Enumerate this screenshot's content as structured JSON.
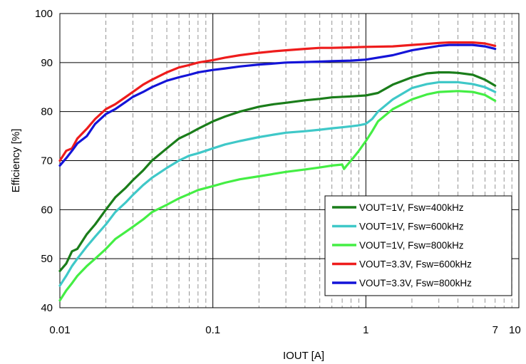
{
  "chart_data": {
    "type": "line",
    "xscale": "log",
    "xlabel": "IOUT [A]",
    "ylabel": "Efficiency [%]",
    "xlim": [
      0.01,
      10
    ],
    "ylim": [
      40,
      100
    ],
    "x_ticks": [
      {
        "value": 0.01,
        "label": "0.01"
      },
      {
        "value": 0.1,
        "label": "0.1"
      },
      {
        "value": 1,
        "label": "1"
      },
      {
        "value": 7,
        "label": "7"
      },
      {
        "value": 10,
        "label": "10"
      }
    ],
    "y_ticks": [
      40,
      50,
      60,
      70,
      80,
      90,
      100
    ],
    "grid": "on",
    "legend_position": "bottom-right",
    "series": [
      {
        "name": "VOUT=1V, Fsw=400kHz",
        "color": "#1a7d1a",
        "x": [
          0.01,
          0.011,
          0.012,
          0.013,
          0.015,
          0.017,
          0.02,
          0.023,
          0.027,
          0.03,
          0.035,
          0.04,
          0.05,
          0.06,
          0.07,
          0.08,
          0.1,
          0.12,
          0.15,
          0.2,
          0.25,
          0.3,
          0.4,
          0.5,
          0.6,
          0.8,
          1.0,
          1.2,
          1.5,
          2,
          2.5,
          3,
          3.5,
          4,
          5,
          6,
          7
        ],
        "y": [
          47.5,
          49,
          51.5,
          52,
          55,
          57,
          60,
          62.5,
          64.5,
          66,
          68,
          70,
          72.5,
          74.5,
          75.5,
          76.5,
          78,
          79,
          80,
          81,
          81.5,
          81.8,
          82.3,
          82.6,
          82.9,
          83.1,
          83.3,
          83.8,
          85.5,
          87,
          87.8,
          88,
          88,
          87.9,
          87.5,
          86.5,
          85.3
        ]
      },
      {
        "name": "VOUT=1V, Fsw=600kHz",
        "color": "#3fc8c8",
        "x": [
          0.01,
          0.011,
          0.012,
          0.013,
          0.015,
          0.017,
          0.02,
          0.023,
          0.027,
          0.03,
          0.035,
          0.04,
          0.05,
          0.06,
          0.07,
          0.08,
          0.1,
          0.12,
          0.15,
          0.2,
          0.25,
          0.3,
          0.4,
          0.5,
          0.6,
          0.7,
          0.8,
          0.9,
          1.0,
          1.1,
          1.2,
          1.5,
          2,
          2.5,
          3,
          4,
          5,
          6,
          7
        ],
        "y": [
          44.5,
          46.5,
          48.5,
          50,
          52.5,
          54.5,
          57,
          59.5,
          61.5,
          63,
          65,
          66.5,
          68.5,
          70,
          71,
          71.5,
          72.5,
          73.3,
          74,
          74.8,
          75.3,
          75.7,
          76,
          76.3,
          76.6,
          76.8,
          77,
          77.2,
          77.5,
          78.5,
          80,
          82.5,
          84.8,
          85.6,
          86,
          86,
          85.6,
          85,
          84
        ]
      },
      {
        "name": "VOUT=1V, Fsw=800kHz",
        "color": "#44ee44",
        "x": [
          0.01,
          0.011,
          0.012,
          0.013,
          0.015,
          0.017,
          0.02,
          0.023,
          0.027,
          0.03,
          0.035,
          0.04,
          0.05,
          0.06,
          0.07,
          0.08,
          0.1,
          0.12,
          0.15,
          0.2,
          0.25,
          0.3,
          0.4,
          0.5,
          0.6,
          0.7,
          0.72,
          0.75,
          0.8,
          0.9,
          1.0,
          1.1,
          1.2,
          1.5,
          2,
          2.5,
          3,
          4,
          5,
          6,
          7
        ],
        "y": [
          41.5,
          43.5,
          45,
          46.5,
          48.5,
          50,
          52,
          54,
          55.5,
          56.5,
          58,
          59.5,
          61,
          62.3,
          63.2,
          64,
          64.8,
          65.5,
          66.2,
          66.8,
          67.3,
          67.7,
          68.2,
          68.6,
          69,
          69.2,
          68.3,
          69,
          70,
          72,
          74,
          76,
          78,
          80.5,
          82.5,
          83.5,
          84,
          84.2,
          84,
          83.4,
          82.2
        ]
      },
      {
        "name": "VOUT=3.3V, Fsw=600kHz",
        "color": "#ee1c1c",
        "x": [
          0.01,
          0.011,
          0.012,
          0.013,
          0.015,
          0.017,
          0.02,
          0.023,
          0.027,
          0.03,
          0.035,
          0.04,
          0.05,
          0.06,
          0.07,
          0.08,
          0.1,
          0.12,
          0.15,
          0.2,
          0.25,
          0.3,
          0.4,
          0.5,
          0.6,
          0.8,
          1.0,
          1.5,
          2,
          2.5,
          3,
          3.5,
          4,
          5,
          6,
          7
        ],
        "y": [
          70,
          72,
          72.5,
          74.5,
          76.5,
          78.5,
          80.5,
          81.5,
          83,
          84,
          85.5,
          86.5,
          88,
          89,
          89.5,
          90,
          90.5,
          91,
          91.5,
          92,
          92.3,
          92.5,
          92.8,
          93,
          93,
          93.1,
          93.2,
          93.3,
          93.6,
          93.8,
          94,
          94.1,
          94.1,
          94.1,
          93.9,
          93.4
        ]
      },
      {
        "name": "VOUT=3.3V, Fsw=800kHz",
        "color": "#1414d8",
        "x": [
          0.01,
          0.011,
          0.012,
          0.013,
          0.015,
          0.017,
          0.02,
          0.023,
          0.027,
          0.03,
          0.035,
          0.04,
          0.05,
          0.06,
          0.07,
          0.08,
          0.1,
          0.12,
          0.15,
          0.2,
          0.25,
          0.3,
          0.4,
          0.5,
          0.6,
          0.8,
          1.0,
          1.5,
          2,
          2.5,
          3,
          3.5,
          4,
          5,
          6,
          7
        ],
        "y": [
          69,
          70.5,
          72,
          73.5,
          75,
          77.5,
          79.5,
          80.5,
          82,
          83,
          84,
          85,
          86.3,
          87,
          87.5,
          88,
          88.5,
          88.8,
          89.2,
          89.6,
          89.8,
          90,
          90.1,
          90.2,
          90.3,
          90.4,
          90.6,
          91.5,
          92.5,
          93,
          93.4,
          93.6,
          93.6,
          93.6,
          93.3,
          92.8
        ]
      }
    ]
  }
}
